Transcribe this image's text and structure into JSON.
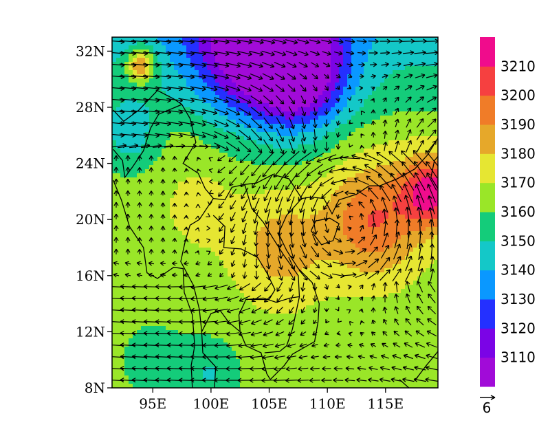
{
  "chart_data": {
    "type": "heatmap",
    "title": "",
    "xlabel": "",
    "ylabel": "",
    "x_range": [
      91.5,
      119.5
    ],
    "y_range": [
      8,
      33
    ],
    "x_ticks": [
      {
        "value": 95,
        "label": "95E"
      },
      {
        "value": 100,
        "label": "100E"
      },
      {
        "value": 105,
        "label": "105E"
      },
      {
        "value": 110,
        "label": "110E"
      },
      {
        "value": 115,
        "label": "115E"
      }
    ],
    "y_ticks": [
      {
        "value": 8,
        "label": "8N"
      },
      {
        "value": 12,
        "label": "12N"
      },
      {
        "value": 16,
        "label": "16N"
      },
      {
        "value": 20,
        "label": "20N"
      },
      {
        "value": 24,
        "label": "24N"
      },
      {
        "value": 28,
        "label": "28N"
      },
      {
        "value": 32,
        "label": "32N"
      }
    ],
    "colorbar": {
      "levels": [
        3100,
        3110,
        3120,
        3130,
        3140,
        3150,
        3160,
        3170,
        3180,
        3190,
        3200,
        3210,
        3220
      ],
      "labels": [
        "3110",
        "3120",
        "3130",
        "3140",
        "3150",
        "3160",
        "3170",
        "3180",
        "3190",
        "3200",
        "3210"
      ],
      "colors": [
        "#a10bd8",
        "#7b04e6",
        "#2430ff",
        "#0a98ff",
        "#14c8c8",
        "#14cc7a",
        "#9ae628",
        "#e6e632",
        "#e6a82a",
        "#f07c28",
        "#f64040",
        "#f00c8c"
      ]
    },
    "field_centers": [
      {
        "lon": 104,
        "lat": 32.5,
        "value": 3105,
        "radius": 5.5
      },
      {
        "lon": 108,
        "lat": 30,
        "value": 3125,
        "radius": 4
      },
      {
        "lon": 94,
        "lat": 31,
        "value": 3205,
        "radius": 1.2
      },
      {
        "lon": 119,
        "lat": 22,
        "value": 3215,
        "radius": 2.5
      },
      {
        "lon": 114,
        "lat": 20,
        "value": 3200,
        "radius": 4
      },
      {
        "lon": 106,
        "lat": 18,
        "value": 3185,
        "radius": 4
      },
      {
        "lon": 99,
        "lat": 21,
        "value": 3175,
        "radius": 3
      },
      {
        "lon": 95,
        "lat": 10,
        "value": 3155,
        "radius": 3
      },
      {
        "lon": 100,
        "lat": 9,
        "value": 3150,
        "radius": 2.5
      },
      {
        "lon": 93,
        "lat": 26,
        "value": 3145,
        "radius": 2.5
      },
      {
        "lon": 116,
        "lat": 10,
        "value": 3162,
        "radius": 3
      }
    ],
    "reference_vector": {
      "value": 6,
      "label": "6"
    },
    "grid": false
  }
}
